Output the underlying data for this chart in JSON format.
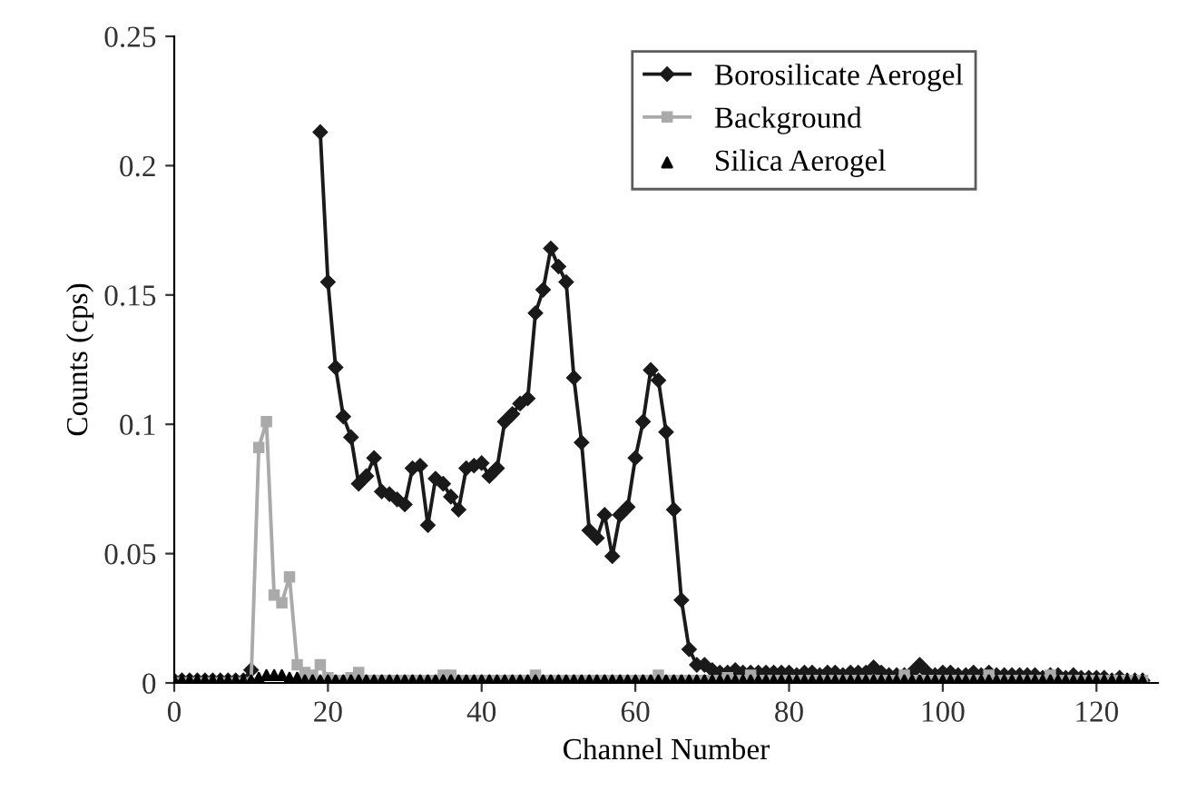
{
  "chart_data": {
    "type": "line",
    "xlabel": "Channel Number",
    "ylabel": "Counts (cps)",
    "xlim": [
      0,
      128
    ],
    "ylim": [
      0,
      0.25
    ],
    "xticks": [
      0,
      20,
      40,
      60,
      80,
      100,
      120
    ],
    "yticks": [
      0,
      0.05,
      0.1,
      0.15,
      0.2,
      0.25
    ],
    "grid": false,
    "legend": "top right",
    "x": [
      0,
      1,
      2,
      3,
      4,
      5,
      6,
      7,
      8,
      9,
      10,
      11,
      12,
      13,
      14,
      15,
      16,
      17,
      18,
      19,
      20,
      21,
      22,
      23,
      24,
      25,
      26,
      27,
      28,
      29,
      30,
      31,
      32,
      33,
      34,
      35,
      36,
      37,
      38,
      39,
      40,
      41,
      42,
      43,
      44,
      45,
      46,
      47,
      48,
      49,
      50,
      51,
      52,
      53,
      54,
      55,
      56,
      57,
      58,
      59,
      60,
      61,
      62,
      63,
      64,
      65,
      66,
      67,
      68,
      69,
      70,
      71,
      72,
      73,
      74,
      75,
      76,
      77,
      78,
      79,
      80,
      81,
      82,
      83,
      84,
      85,
      86,
      87,
      88,
      89,
      90,
      91,
      92,
      93,
      94,
      95,
      96,
      97,
      98,
      99,
      100,
      101,
      102,
      103,
      104,
      105,
      106,
      107,
      108,
      109,
      110,
      111,
      112,
      113,
      114,
      115,
      116,
      117,
      118,
      119,
      120,
      121,
      122,
      123,
      124,
      125,
      126
    ],
    "series": [
      {
        "name": "Borosilicate Aerogel",
        "color": "#1a1a1a",
        "marker": "diamond",
        "line_style": "solid",
        "values": [
          0.001,
          0.001,
          0.001,
          0.001,
          0.001,
          0.001,
          0.001,
          0.001,
          0.001,
          0.001,
          0.005,
          null,
          null,
          null,
          null,
          null,
          null,
          null,
          null,
          0.213,
          0.155,
          0.122,
          0.103,
          0.095,
          0.077,
          0.08,
          0.087,
          0.074,
          0.073,
          0.071,
          0.069,
          0.083,
          0.084,
          0.061,
          0.079,
          0.077,
          0.072,
          0.067,
          0.083,
          0.084,
          0.085,
          0.08,
          0.083,
          0.101,
          0.104,
          0.108,
          0.11,
          0.143,
          0.152,
          0.168,
          0.161,
          0.155,
          0.118,
          0.093,
          0.059,
          0.056,
          0.065,
          0.049,
          0.065,
          0.068,
          0.087,
          0.101,
          0.121,
          0.117,
          0.097,
          0.067,
          0.032,
          0.013,
          0.007,
          0.007,
          0.005,
          0.004,
          0.004,
          0.005,
          0.004,
          0.004,
          0.004,
          0.004,
          0.004,
          0.004,
          0.004,
          0.003,
          0.004,
          0.004,
          0.003,
          0.004,
          0.004,
          0.003,
          0.004,
          0.004,
          0.004,
          0.006,
          0.004,
          0.003,
          0.003,
          0.003,
          0.004,
          0.007,
          0.004,
          0.003,
          0.004,
          0.004,
          0.003,
          0.003,
          0.004,
          0.003,
          0.004,
          0.003,
          0.003,
          0.003,
          0.003,
          0.003,
          0.003,
          0.002,
          0.003,
          0.003,
          0.002,
          0.003,
          0.002,
          0.002,
          0.002,
          0.002,
          0.001,
          0.002,
          0.001,
          0.001,
          0.001
        ]
      },
      {
        "name": "Background",
        "color": "#aaaaaa",
        "marker": "square",
        "line_style": "solid",
        "values": [
          0,
          0,
          0,
          0,
          0,
          0,
          0,
          0,
          0,
          0,
          0,
          0.091,
          0.101,
          0.034,
          0.031,
          0.041,
          0.007,
          0.004,
          0.003,
          0.007,
          0.002,
          0.001,
          0.001,
          0.002,
          0.004,
          0.001,
          0.001,
          0.001,
          0.001,
          0.001,
          0.001,
          0.001,
          0.001,
          0.001,
          0.001,
          0.003,
          0.003,
          0.001,
          0.001,
          0.001,
          0.001,
          0.001,
          0.001,
          0.001,
          0.001,
          0.001,
          0.001,
          0.003,
          0.001,
          0.001,
          0.001,
          0.001,
          0.001,
          0.001,
          0.001,
          0.001,
          0.001,
          0.001,
          0.001,
          0.001,
          0.001,
          0.001,
          0.001,
          0.003,
          0.001,
          0.001,
          0.001,
          0.001,
          0.001,
          0.001,
          0.001,
          0.001,
          0.002,
          0.001,
          0.001,
          0.003,
          0.001,
          0.001,
          0.001,
          0.001,
          0.001,
          0.001,
          0.001,
          0.001,
          0.001,
          0.001,
          0.001,
          0.001,
          0.001,
          0.001,
          0.001,
          0.001,
          0.001,
          0.001,
          0.001,
          0.003,
          0.001,
          0.001,
          0.001,
          0.001,
          0.001,
          0.001,
          0.001,
          0.001,
          0.001,
          0.001,
          0.003,
          0.001,
          0.001,
          0.001,
          0.001,
          0.001,
          0.001,
          0.001,
          0.003,
          0.001,
          0.001,
          0.001,
          0.001,
          0.001,
          0.001,
          0.001,
          0.001,
          0.001,
          0.001,
          0.001,
          0.001
        ]
      },
      {
        "name": "Silica Aerogel",
        "type": "scatter",
        "color": "#000000",
        "marker": "triangle",
        "values": [
          0.001,
          0.001,
          0.001,
          0.001,
          0.001,
          0.001,
          0.001,
          0.001,
          0.001,
          0.001,
          0.001,
          0.002,
          0.003,
          0.003,
          0.003,
          0.002,
          0.002,
          0.001,
          0.001,
          0.001,
          0.001,
          0.001,
          0.001,
          0.001,
          0.001,
          0.001,
          0.001,
          0.001,
          0.001,
          0.001,
          0.001,
          0.001,
          0.001,
          0.001,
          0.001,
          0.001,
          0.001,
          0.001,
          0.001,
          0.001,
          0.001,
          0.001,
          0.001,
          0.001,
          0.001,
          0.001,
          0.001,
          0.001,
          0.001,
          0.001,
          0.001,
          0.001,
          0.001,
          0.001,
          0.001,
          0.001,
          0.001,
          0.001,
          0.001,
          0.001,
          0.001,
          0.001,
          0.001,
          0.001,
          0.001,
          0.001,
          0.001,
          0.001,
          0.001,
          0.001,
          0.001,
          0.001,
          0.001,
          0.001,
          0.001,
          0.001,
          0.001,
          0.001,
          0.001,
          0.001,
          0.001,
          0.001,
          0.001,
          0.001,
          0.001,
          0.001,
          0.001,
          0.001,
          0.001,
          0.001,
          0.001,
          0.001,
          0.001,
          0.001,
          0.001,
          0.001,
          0.001,
          0.001,
          0.001,
          0.001,
          0.001,
          0.001,
          0.001,
          0.001,
          0.001,
          0.001,
          0.001,
          0.001,
          0.001,
          0.001,
          0.001,
          0.001,
          0.001,
          0.001,
          0.001,
          0.001,
          0.001,
          0.001,
          0.001,
          0.001,
          0.001,
          0.001,
          0.001,
          0.001,
          0.001,
          0.001,
          0.001
        ]
      }
    ]
  }
}
